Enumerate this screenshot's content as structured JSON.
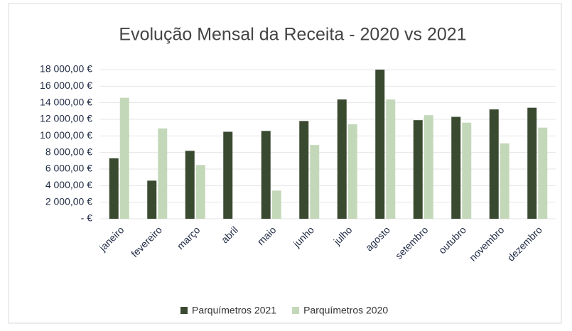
{
  "chart_data": {
    "type": "bar",
    "title": "Evolução Mensal da Receita - 2020 vs 2021",
    "categories": [
      "janeiro",
      "fevereiro",
      "março",
      "abril",
      "maio",
      "junho",
      "julho",
      "agosto",
      "setembro",
      "outubro",
      "novembro",
      "dezembro"
    ],
    "series": [
      {
        "name": "Parquímetros 2021",
        "color": "#3a4a30",
        "values": [
          7300,
          4600,
          8200,
          10500,
          10600,
          11800,
          14400,
          18000,
          11900,
          12300,
          13200,
          13400
        ]
      },
      {
        "name": "Parquímetros 2020",
        "color": "#c3d8b9",
        "values": [
          14600,
          10900,
          6500,
          0,
          3400,
          8900,
          11400,
          14400,
          12500,
          11600,
          9100,
          11000
        ]
      }
    ],
    "ylim": [
      0,
      18000
    ],
    "yticks": [
      {
        "value": 0,
        "label": "-  €"
      },
      {
        "value": 2000,
        "label": "2 000,00 €"
      },
      {
        "value": 4000,
        "label": "4 000,00 €"
      },
      {
        "value": 6000,
        "label": "6 000,00 €"
      },
      {
        "value": 8000,
        "label": "8 000,00 €"
      },
      {
        "value": 10000,
        "label": "10 000,00 €"
      },
      {
        "value": 12000,
        "label": "12 000,00 €"
      },
      {
        "value": 14000,
        "label": "14 000,00 €"
      },
      {
        "value": 16000,
        "label": "16 000,00 €"
      },
      {
        "value": 18000,
        "label": "18 000,00 €"
      }
    ],
    "grid": true,
    "legend": "bottom"
  }
}
